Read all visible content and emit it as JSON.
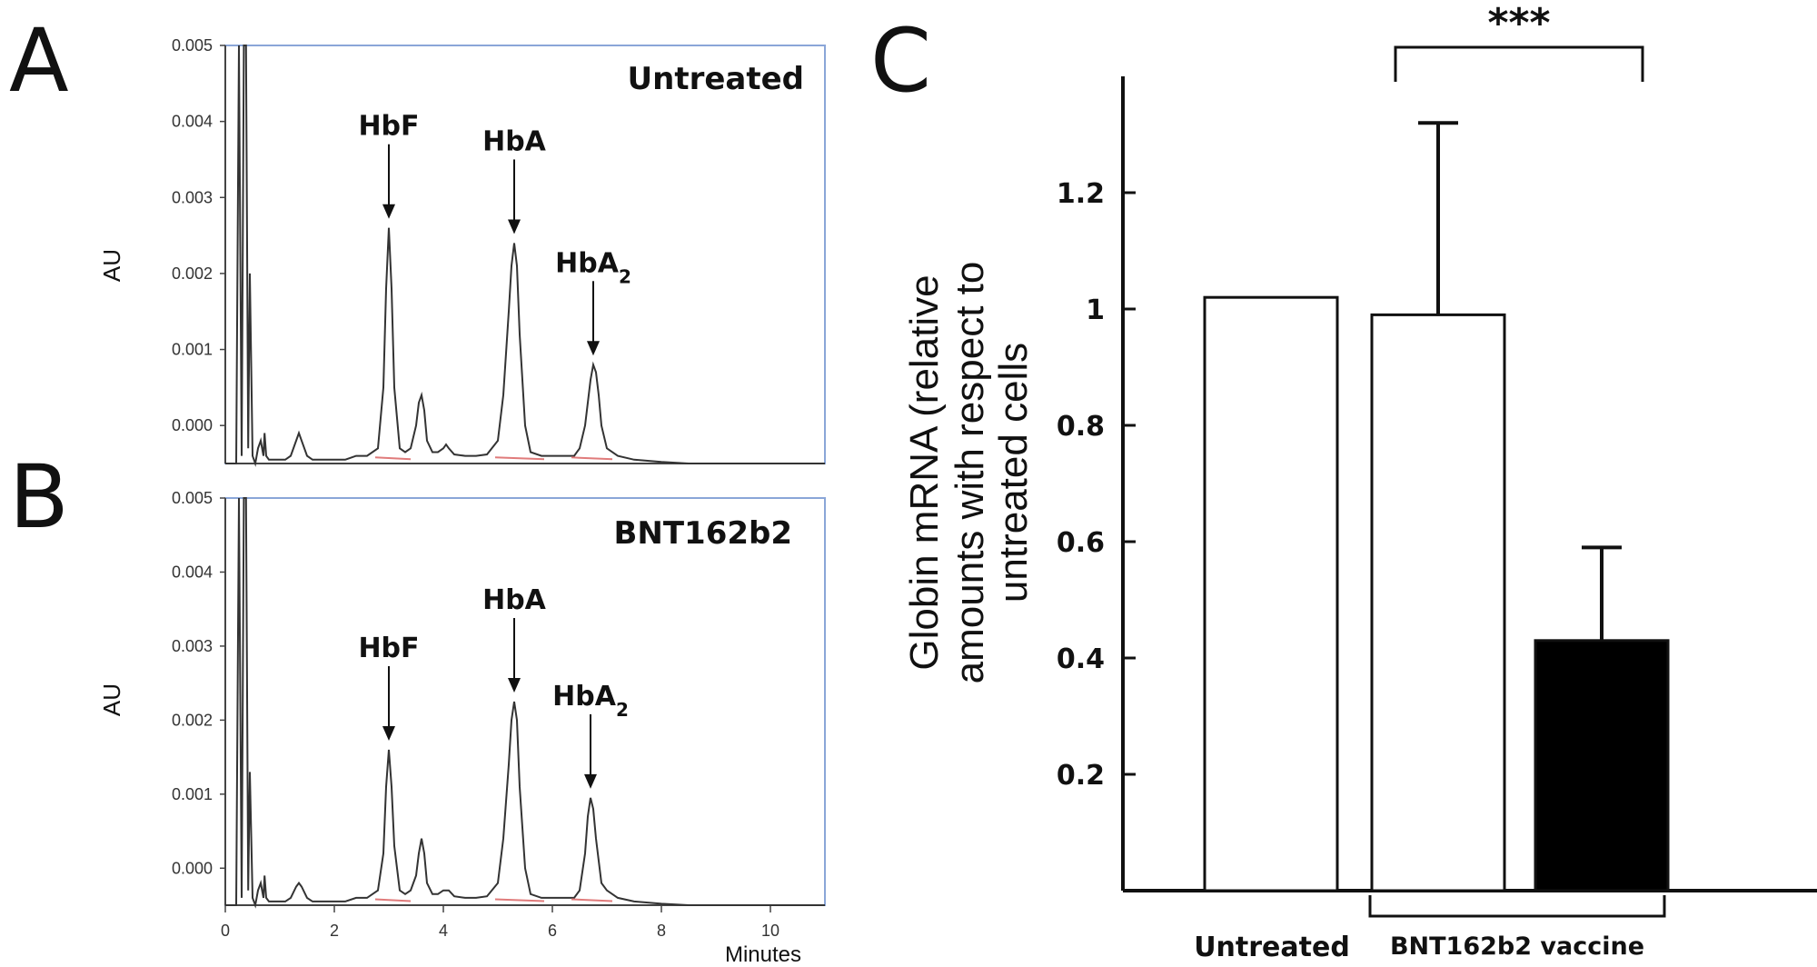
{
  "panels": {
    "A": "A",
    "B": "B",
    "C": "C"
  },
  "chart_data": [
    {
      "type": "line",
      "panel": "A",
      "condition": "Untreated",
      "ylabel": "AU",
      "xlim": [
        0,
        11
      ],
      "ylim": [
        -0.0005,
        0.005
      ],
      "yticks": [
        "0.005",
        "0.004",
        "0.003",
        "0.002",
        "0.001",
        "0.000"
      ],
      "peaks": [
        {
          "label": "HbF",
          "x": 3.0,
          "y": 0.0026
        },
        {
          "label": "HbA",
          "x": 5.3,
          "y": 0.0024
        },
        {
          "label": "HbA",
          "sub": "2",
          "x": 6.75,
          "y": 0.0008
        }
      ],
      "x": [
        0,
        0.2,
        0.25,
        0.3,
        0.34,
        0.38,
        0.42,
        0.45,
        0.5,
        0.55,
        0.6,
        0.65,
        0.7,
        0.72,
        0.75,
        0.8,
        0.9,
        1.0,
        1.1,
        1.2,
        1.3,
        1.35,
        1.4,
        1.5,
        1.6,
        1.8,
        2.0,
        2.2,
        2.4,
        2.6,
        2.8,
        2.9,
        2.95,
        3.0,
        3.05,
        3.1,
        3.2,
        3.3,
        3.4,
        3.5,
        3.55,
        3.6,
        3.65,
        3.7,
        3.8,
        3.9,
        4.0,
        4.05,
        4.1,
        4.2,
        4.4,
        4.6,
        4.8,
        5.0,
        5.1,
        5.2,
        5.25,
        5.3,
        5.35,
        5.4,
        5.5,
        5.6,
        5.8,
        6.0,
        6.2,
        6.4,
        6.5,
        6.6,
        6.7,
        6.75,
        6.8,
        6.85,
        6.9,
        7.0,
        7.2,
        7.5,
        8.0,
        8.5,
        9.0,
        9.5,
        10.0,
        10.5,
        11.0
      ],
      "y": [
        -0.00055,
        -0.00055,
        0.0055,
        -0.0004,
        0.0055,
        0.0055,
        -0.0003,
        0.002,
        -0.0004,
        -0.0005,
        -0.0003,
        -0.0002,
        -0.0004,
        -0.0001,
        -0.0004,
        -0.00045,
        -0.00045,
        -0.00045,
        -0.00045,
        -0.0004,
        -0.0002,
        -0.0001,
        -0.0002,
        -0.0004,
        -0.00045,
        -0.00045,
        -0.00045,
        -0.00045,
        -0.0004,
        -0.0004,
        -0.0003,
        0.0005,
        0.0018,
        0.0026,
        0.0018,
        0.0005,
        -0.0003,
        -0.00035,
        -0.0003,
        0.0,
        0.0003,
        0.0004,
        0.0002,
        -0.0002,
        -0.00035,
        -0.00035,
        -0.0003,
        -0.00025,
        -0.0003,
        -0.00038,
        -0.0004,
        -0.0004,
        -0.00038,
        -0.0002,
        0.0004,
        0.0015,
        0.0021,
        0.0024,
        0.0021,
        0.0012,
        0.0,
        -0.00035,
        -0.0004,
        -0.0004,
        -0.0004,
        -0.0004,
        -0.0003,
        0.0,
        0.0006,
        0.0008,
        0.0007,
        0.0004,
        0.0,
        -0.0003,
        -0.0004,
        -0.00045,
        -0.00048,
        -0.0005,
        -0.0005,
        -0.00052,
        -0.00052,
        -0.00055,
        -0.00055
      ]
    },
    {
      "type": "line",
      "panel": "B",
      "condition": "BNT162b2",
      "ylabel": "AU",
      "xlabel": "Minutes",
      "xlim": [
        0,
        11
      ],
      "ylim": [
        -0.0005,
        0.005
      ],
      "xticks": [
        "0",
        "2",
        "4",
        "6",
        "8",
        "10"
      ],
      "yticks": [
        "0.005",
        "0.004",
        "0.003",
        "0.002",
        "0.001",
        "0.000"
      ],
      "peaks": [
        {
          "label": "HbF",
          "x": 3.0,
          "y": 0.0016
        },
        {
          "label": "HbA",
          "x": 5.3,
          "y": 0.00225
        },
        {
          "label": "HbA",
          "sub": "2",
          "x": 6.7,
          "y": 0.00095
        }
      ],
      "x": [
        0,
        0.2,
        0.25,
        0.3,
        0.34,
        0.38,
        0.42,
        0.45,
        0.5,
        0.55,
        0.6,
        0.65,
        0.7,
        0.72,
        0.75,
        0.8,
        0.9,
        1.0,
        1.1,
        1.2,
        1.3,
        1.35,
        1.4,
        1.5,
        1.6,
        1.8,
        2.0,
        2.2,
        2.4,
        2.6,
        2.8,
        2.9,
        2.95,
        3.0,
        3.05,
        3.1,
        3.2,
        3.3,
        3.4,
        3.5,
        3.55,
        3.6,
        3.65,
        3.7,
        3.8,
        3.9,
        4.0,
        4.05,
        4.1,
        4.2,
        4.4,
        4.6,
        4.8,
        5.0,
        5.1,
        5.2,
        5.25,
        5.3,
        5.35,
        5.4,
        5.5,
        5.6,
        5.8,
        6.0,
        6.2,
        6.4,
        6.5,
        6.6,
        6.65,
        6.7,
        6.75,
        6.8,
        6.9,
        7.0,
        7.2,
        7.5,
        8.0,
        8.5,
        9.0,
        9.5,
        10.0,
        10.5,
        11.0
      ],
      "y": [
        -0.00055,
        -0.00055,
        0.0055,
        -0.0004,
        0.0055,
        0.0055,
        -0.0003,
        0.0013,
        -0.0004,
        -0.0005,
        -0.0003,
        -0.0002,
        -0.0004,
        -0.0001,
        -0.0004,
        -0.00045,
        -0.00045,
        -0.00045,
        -0.00045,
        -0.0004,
        -0.00025,
        -0.0002,
        -0.00025,
        -0.0004,
        -0.00045,
        -0.00045,
        -0.00045,
        -0.00045,
        -0.0004,
        -0.0004,
        -0.0003,
        0.0002,
        0.0011,
        0.0016,
        0.0011,
        0.0003,
        -0.0003,
        -0.00035,
        -0.0003,
        -0.0001,
        0.0002,
        0.0004,
        0.0002,
        -0.0002,
        -0.00035,
        -0.00035,
        -0.0003,
        -0.0003,
        -0.0003,
        -0.00038,
        -0.0004,
        -0.0004,
        -0.00038,
        -0.0002,
        0.0004,
        0.0014,
        0.002,
        0.00225,
        0.002,
        0.0011,
        0.0,
        -0.00035,
        -0.0004,
        -0.0004,
        -0.0004,
        -0.0004,
        -0.0003,
        0.0002,
        0.0007,
        0.00095,
        0.0008,
        0.0004,
        -0.0002,
        -0.0003,
        -0.0004,
        -0.00045,
        -0.00048,
        -0.0005,
        -0.0005,
        -0.00052,
        -0.00052,
        -0.00055,
        -0.00055
      ]
    },
    {
      "type": "bar",
      "panel": "C",
      "ylabel_lines": [
        "Globin mRNA (relative",
        "amounts with respect to",
        "untreated  cells"
      ],
      "ylim": [
        0,
        1.4
      ],
      "yticks": [
        "0.2",
        "0.4",
        "0.6",
        "0.8",
        "1",
        "1.2"
      ],
      "categories": [
        "Untreated",
        "BNT162b2 vaccine"
      ],
      "bars": [
        {
          "value": 1.02,
          "error": 0.0,
          "fill": "#ffffff"
        },
        {
          "value": 0.99,
          "error": 0.33,
          "fill": "#ffffff"
        },
        {
          "value": 0.43,
          "error": 0.16,
          "fill": "#000000"
        }
      ],
      "significance": "***"
    }
  ]
}
